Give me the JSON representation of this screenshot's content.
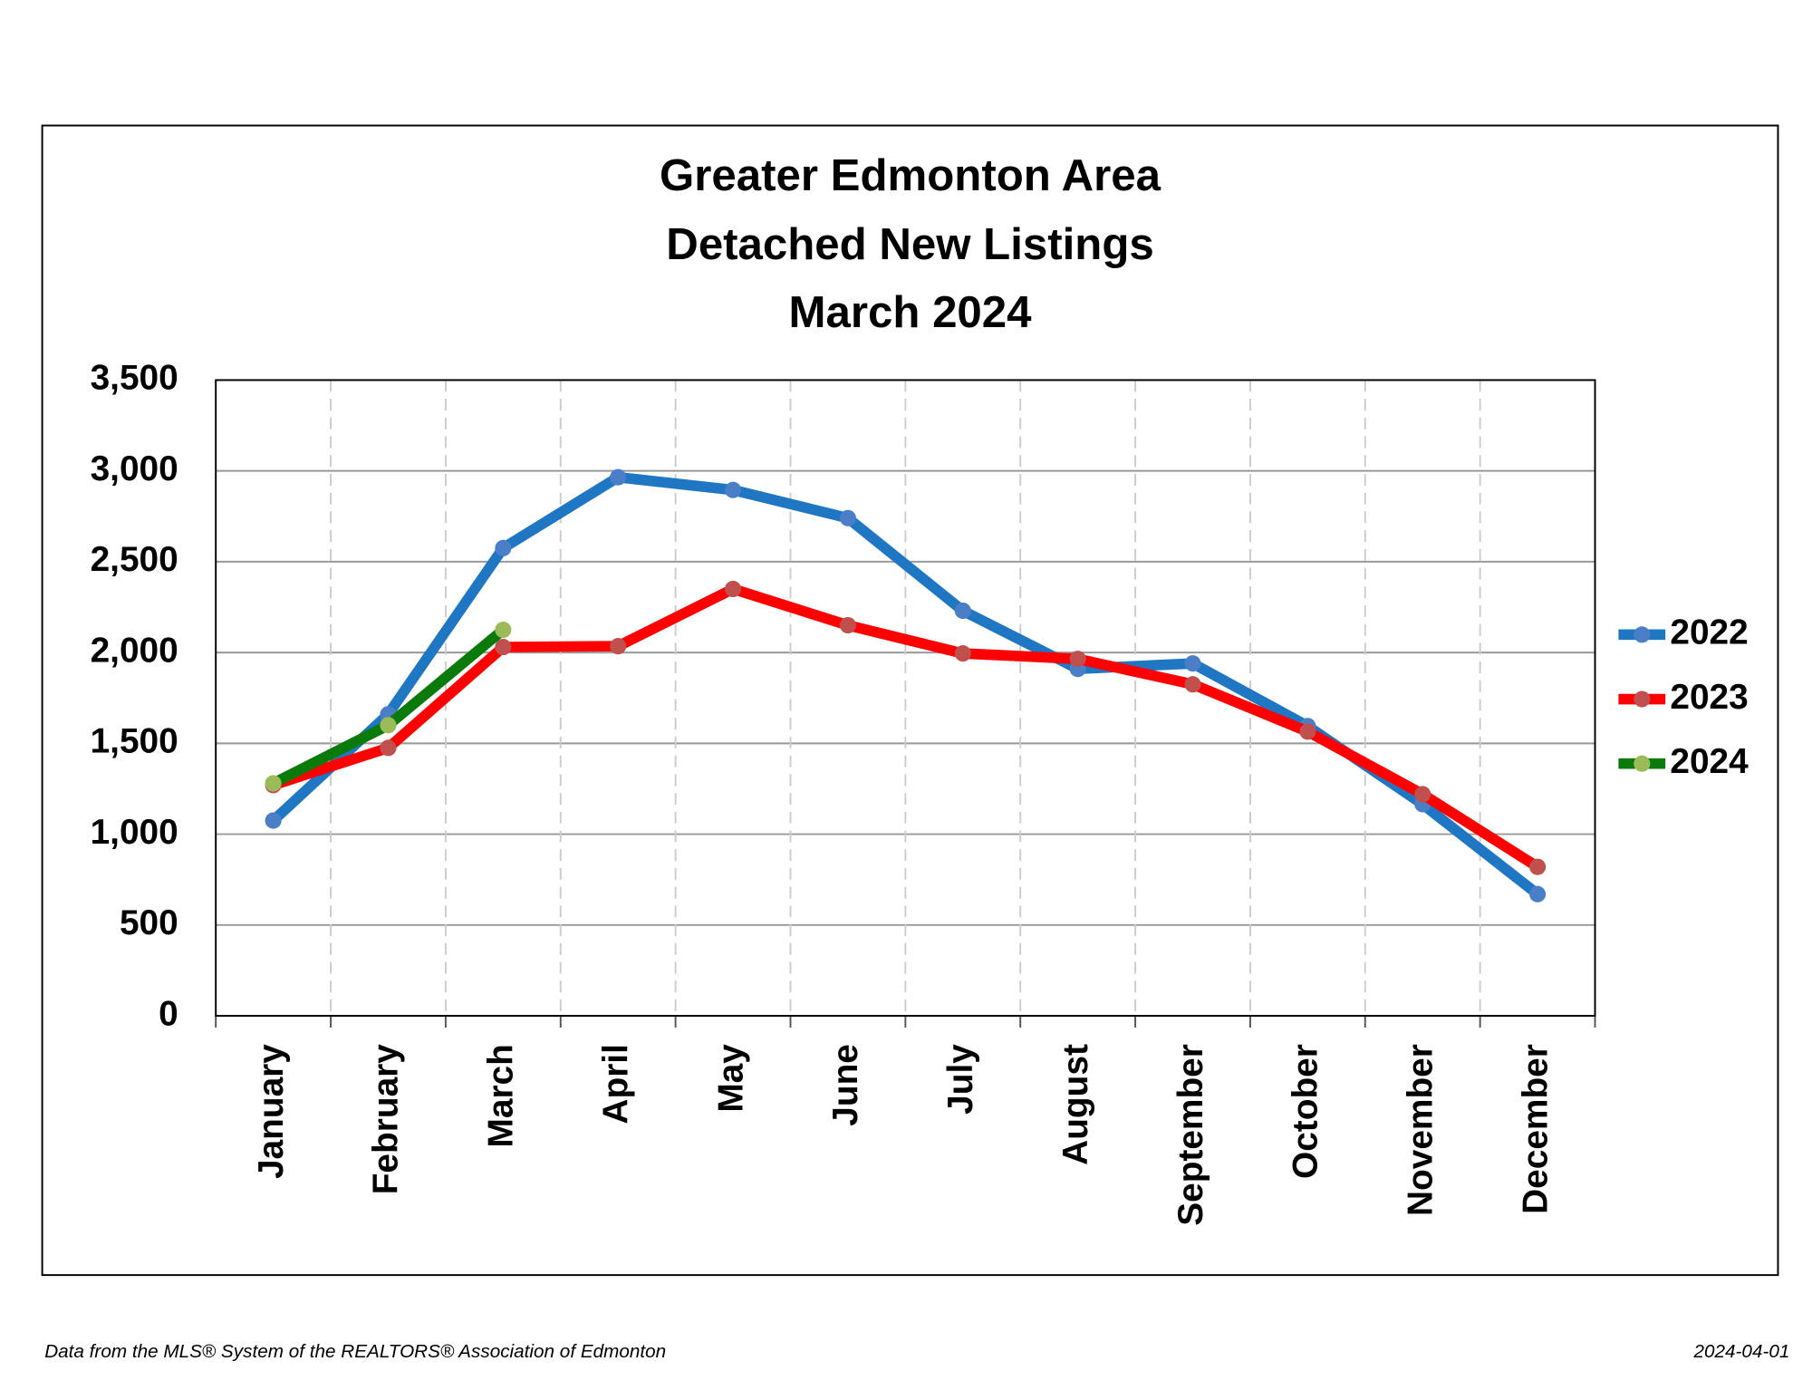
{
  "chart_data": {
    "type": "line",
    "title": [
      "Greater Edmonton Area",
      "Detached New Listings",
      "March 2024"
    ],
    "categories": [
      "January",
      "February",
      "March",
      "April",
      "May",
      "June",
      "July",
      "August",
      "September",
      "October",
      "November",
      "December"
    ],
    "series": [
      {
        "name": "2022",
        "color": "#1f77c4",
        "marker": "#4a7fc8",
        "values": [
          1075,
          1660,
          2575,
          2965,
          2895,
          2740,
          2230,
          1910,
          1940,
          1595,
          1165,
          670
        ]
      },
      {
        "name": "2023",
        "color": "#ff0000",
        "marker": "#c0504d",
        "values": [
          1270,
          1475,
          2030,
          2035,
          2350,
          2150,
          1995,
          1965,
          1825,
          1565,
          1220,
          820
        ]
      },
      {
        "name": "2024",
        "color": "#0a7a0a",
        "marker": "#9bbb59",
        "values": [
          1280,
          1600,
          2125,
          null,
          null,
          null,
          null,
          null,
          null,
          null,
          null,
          null
        ]
      }
    ],
    "ylim": [
      0,
      3500
    ],
    "yticks": [
      0,
      {
        "value": 500,
        "label": "500"
      },
      {
        "value": 1000,
        "label": "1,000"
      },
      {
        "value": 1500,
        "label": "1,500"
      },
      {
        "value": 2000,
        "label": "2,000"
      },
      {
        "value": 2500,
        "label": "2,500"
      },
      {
        "value": 3000,
        "label": "3,000"
      },
      {
        "value": 3500,
        "label": "3,500"
      }
    ],
    "grid": true,
    "legend": "right",
    "source": "Data from the MLS® System of the REALTORS® Association of Edmonton",
    "date": "2024-04-01"
  }
}
